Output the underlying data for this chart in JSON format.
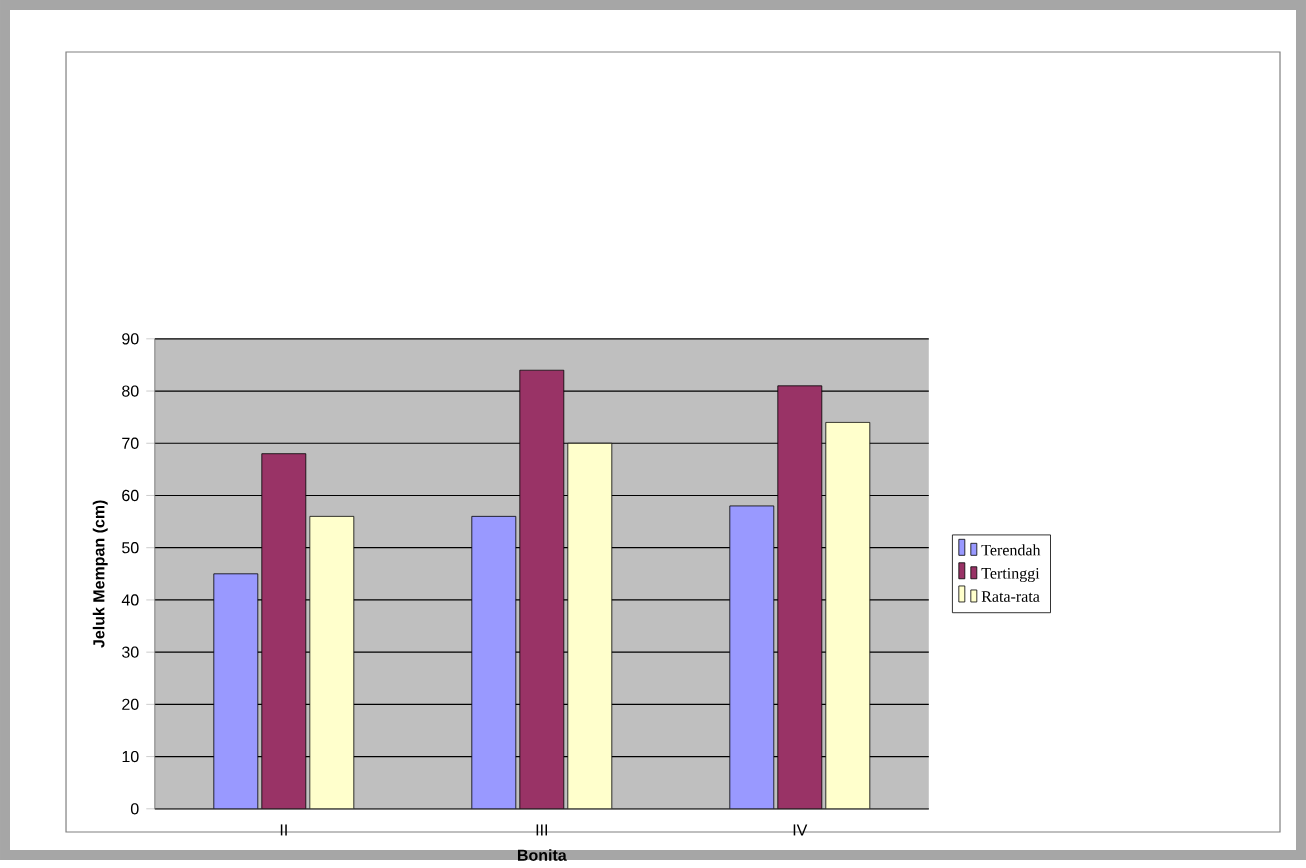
{
  "chart_data": {
    "type": "bar",
    "xlabel": "Bonita",
    "ylabel": "Jeluk Mempan (cm)",
    "categories": [
      "II",
      "III",
      "IV"
    ],
    "series": [
      {
        "name": "Terendah",
        "color": "#9999ff",
        "values": [
          45,
          56,
          58
        ]
      },
      {
        "name": "Tertinggi",
        "color": "#993366",
        "values": [
          68,
          84,
          81
        ]
      },
      {
        "name": "Rata-rata",
        "color": "#ffffcc",
        "values": [
          56,
          70,
          74
        ]
      }
    ],
    "ylim": [
      0,
      90
    ],
    "yticks": [
      0,
      10,
      20,
      30,
      40,
      50,
      60,
      70,
      80,
      90
    ],
    "grid": "y",
    "legend": "right"
  }
}
